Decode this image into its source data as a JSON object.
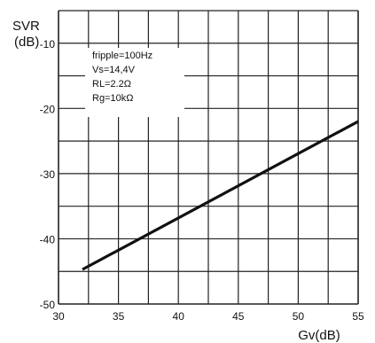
{
  "chart_data": {
    "type": "line",
    "ylabel_line1": "SVR",
    "ylabel_line2": "(dB)",
    "xlabel": "Gv(dB)",
    "xlim": [
      30,
      55
    ],
    "ylim": [
      -50,
      -5
    ],
    "x_ticks": [
      "30",
      "35",
      "40",
      "45",
      "50",
      "55"
    ],
    "y_ticks": [
      "-10",
      "-20",
      "-30",
      "-40",
      "-50"
    ],
    "grid": true,
    "conditions": [
      "fripple=100Hz",
      "Vs=14,4V",
      "RL=2.2Ω",
      "Rg=10kΩ"
    ],
    "series": [
      {
        "x": [
          32,
          55
        ],
        "y": [
          -44.7,
          -22.0
        ]
      }
    ]
  }
}
